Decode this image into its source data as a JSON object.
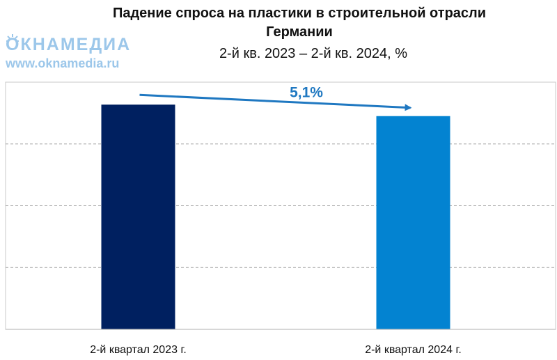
{
  "title_line1": "Падение спроса на пластики в строительной отрасли",
  "title_line2": "Германии",
  "subtitle": "2-й кв. 2023 – 2-й кв. 2024, %",
  "watermark": {
    "logo_text": "ОКНАМЕДИА",
    "url": "www.oknamedia.ru"
  },
  "chart_data": {
    "type": "bar",
    "categories": [
      "2-й квартал 2023 г.",
      "2-й квартал 2024 г."
    ],
    "values": [
      100,
      94.9
    ],
    "bar_colors": [
      "#002060",
      "#0383d1"
    ],
    "ylim": [
      0,
      110
    ],
    "grid": true,
    "annotation": {
      "text": "5,1%",
      "from_category": 0,
      "to_category": 1,
      "color": "#1f78c1"
    }
  }
}
